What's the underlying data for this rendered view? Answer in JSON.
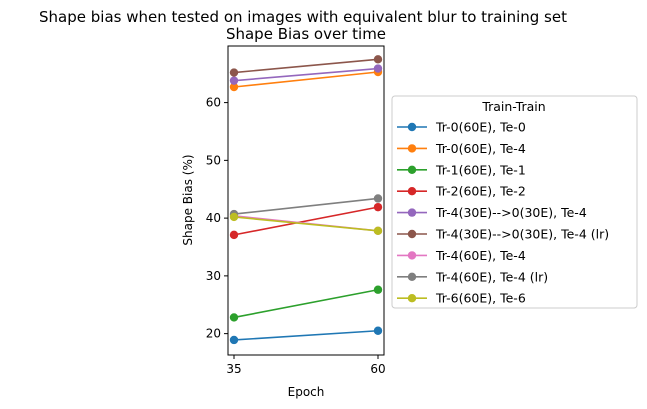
{
  "chart_data": {
    "type": "line",
    "suptitle": "Shape bias when tested on images with equivalent blur to training set",
    "title": "Shape Bias over time",
    "xlabel": "Epoch",
    "ylabel": "Shape Bias (%)",
    "x": [
      35,
      60
    ],
    "xticks": [
      35,
      60
    ],
    "yticks": [
      20,
      30,
      40,
      50,
      60
    ],
    "ylim": [
      16.3,
      69.8
    ],
    "legend_title": "Train-Train",
    "legend_position": "outside-right",
    "series": [
      {
        "name": "Tr-0(60E), Te-0",
        "color": "#1f77b4",
        "values": [
          18.9,
          20.5
        ]
      },
      {
        "name": "Tr-0(60E), Te-4",
        "color": "#ff7f0e",
        "values": [
          62.7,
          65.3
        ]
      },
      {
        "name": "Tr-1(60E), Te-1",
        "color": "#2ca02c",
        "values": [
          22.8,
          27.6
        ]
      },
      {
        "name": "Tr-2(60E), Te-2",
        "color": "#d62728",
        "values": [
          37.1,
          41.9
        ]
      },
      {
        "name": "Tr-4(30E)-->0(30E), Te-4",
        "color": "#9467bd",
        "values": [
          63.8,
          65.9
        ]
      },
      {
        "name": "Tr-4(30E)-->0(30E), Te-4 (lr)",
        "color": "#8c564b",
        "values": [
          65.2,
          67.5
        ]
      },
      {
        "name": "Tr-4(60E), Te-4",
        "color": "#e377c2",
        "values": [
          40.4,
          37.8
        ]
      },
      {
        "name": "Tr-4(60E), Te-4 (lr)",
        "color": "#7f7f7f",
        "values": [
          40.7,
          43.4
        ]
      },
      {
        "name": "Tr-6(60E), Te-6",
        "color": "#bcbd22",
        "values": [
          40.2,
          37.8
        ]
      }
    ]
  }
}
